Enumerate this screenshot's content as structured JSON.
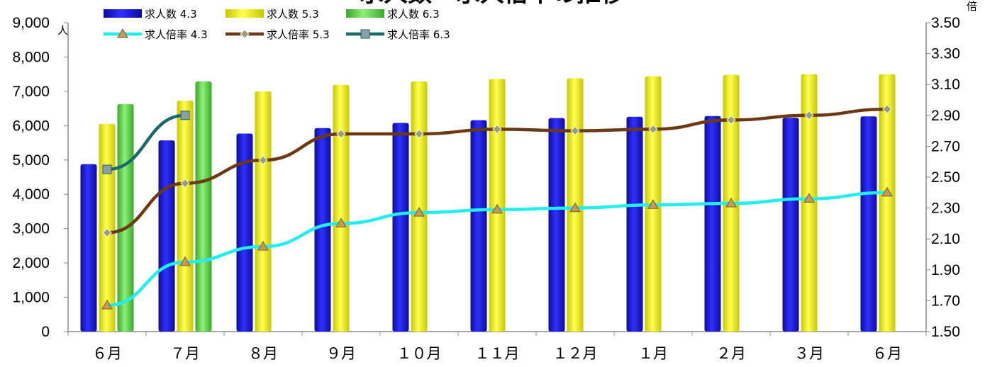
{
  "chart_data": {
    "type": "bar",
    "title": "求人数・求人倍率の推移",
    "left_unit": "人",
    "right_unit": "倍",
    "categories": [
      "６月",
      "７月",
      "８月",
      "９月",
      "１０月",
      "１１月",
      "１２月",
      "１月",
      "２月",
      "３月",
      "６月"
    ],
    "bar_series": [
      {
        "name": "求人数 4.3",
        "color": "#1a1adc",
        "values": [
          4880,
          5570,
          5770,
          5930,
          6080,
          6160,
          6220,
          6260,
          6280,
          6230,
          6270
        ]
      },
      {
        "name": "求人数 5.3",
        "color": "#f2f21a",
        "values": [
          6050,
          6730,
          7000,
          7190,
          7290,
          7360,
          7380,
          7440,
          7480,
          7500,
          7500
        ]
      },
      {
        "name": "求人数 6.3",
        "color": "#66dd44",
        "values": [
          6630,
          7290,
          null,
          null,
          null,
          null,
          null,
          null,
          null,
          null,
          null
        ]
      }
    ],
    "line_series": [
      {
        "name": "求人倍率 4.3",
        "color": "#22eeee",
        "marker": "triangle",
        "values": [
          1.67,
          1.95,
          2.05,
          2.2,
          2.27,
          2.29,
          2.3,
          2.32,
          2.33,
          2.36,
          2.4
        ]
      },
      {
        "name": "求人倍率 5.3",
        "color": "#6b3a14",
        "marker": "diamond",
        "values": [
          2.14,
          2.46,
          2.61,
          2.78,
          2.78,
          2.81,
          2.8,
          2.81,
          2.87,
          2.9,
          2.94
        ]
      },
      {
        "name": "求人倍率 6.3",
        "color": "#1a6a6a",
        "marker": "square",
        "values": [
          2.55,
          2.9,
          null,
          null,
          null,
          null,
          null,
          null,
          null,
          null,
          null
        ]
      }
    ],
    "y_left": {
      "min": 0,
      "max": 9000,
      "step": 1000,
      "tick_labels": [
        "0",
        "1,000",
        "2,000",
        "3,000",
        "4,000",
        "5,000",
        "6,000",
        "7,000",
        "8,000",
        "9,000"
      ]
    },
    "y_right": {
      "min": 1.5,
      "max": 3.5,
      "step": 0.2,
      "tick_labels": [
        "1.50",
        "1.70",
        "1.90",
        "2.10",
        "2.30",
        "2.50",
        "2.70",
        "2.90",
        "3.10",
        "3.30",
        "3.50"
      ]
    },
    "grid": false,
    "legend_position": "top-left"
  }
}
